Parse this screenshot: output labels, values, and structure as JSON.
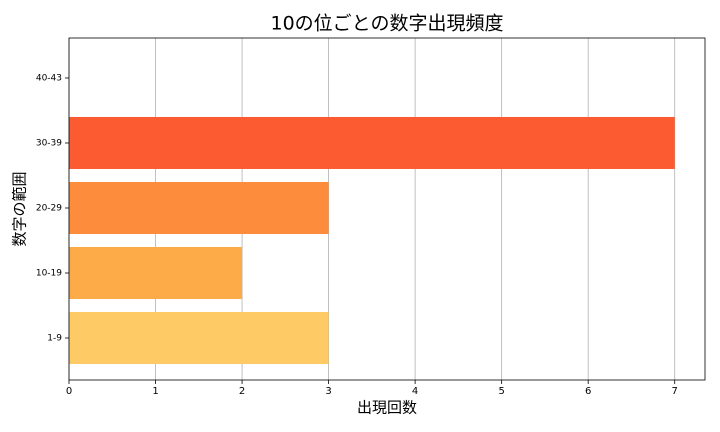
{
  "chart_data": {
    "type": "barh",
    "title": "10の位ごとの数字出現頻度",
    "xlabel": "出現回数",
    "ylabel": "数字の範囲",
    "categories": [
      "1-9",
      "10-19",
      "20-29",
      "30-39",
      "40-43"
    ],
    "values": [
      3,
      2,
      3,
      7,
      0
    ],
    "colors": [
      "#fdca65",
      "#fdaa48",
      "#fd8d3c",
      "#fc5a30",
      "#e8311f"
    ],
    "xlim": [
      0,
      7.35
    ],
    "xticks": [
      0,
      1,
      2,
      3,
      4,
      5,
      6,
      7
    ],
    "grid": true
  }
}
